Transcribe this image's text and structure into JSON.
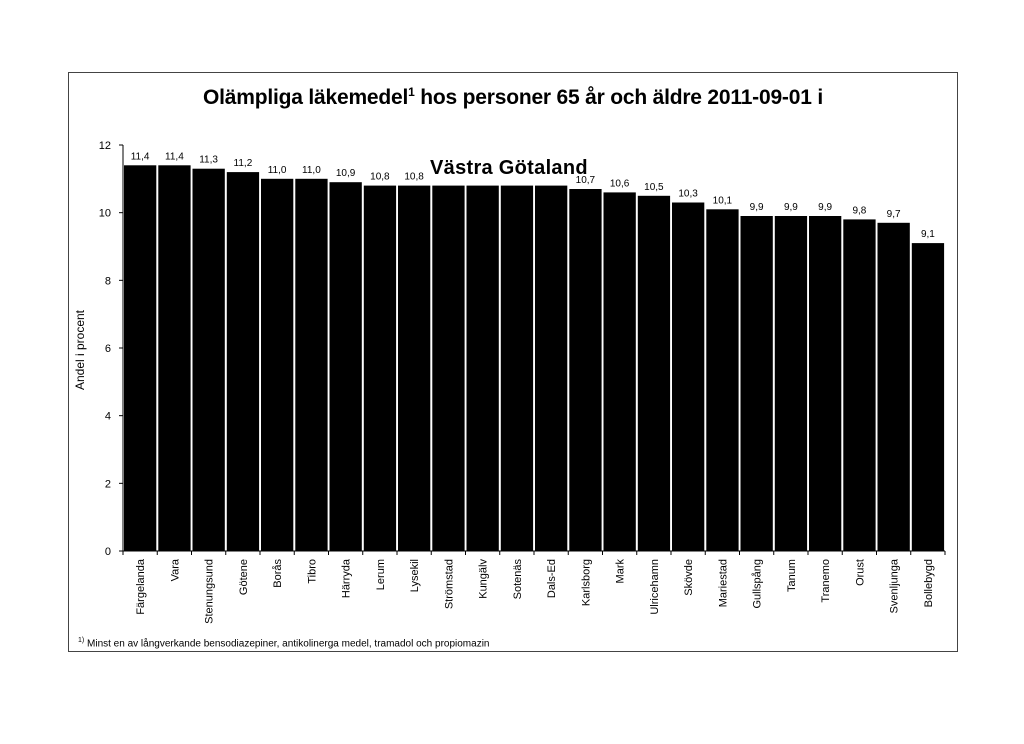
{
  "chart_data": {
    "type": "bar",
    "title": "Olämpliga läkemedel",
    "title_sup": "1",
    "title_rest": " hos personer 65 år och äldre 2011-09-01 i",
    "subtitle": "Västra Götaland",
    "ylabel": "Andel i procent",
    "xlabel": "",
    "ylim": [
      0,
      12
    ],
    "yticks": [
      0,
      2,
      4,
      6,
      8,
      10,
      12
    ],
    "categories": [
      "Färgelanda",
      "Vara",
      "Stenungsund",
      "Götene",
      "Borås",
      "Tibro",
      "Härryda",
      "Lerum",
      "Lysekil",
      "Strömstad",
      "Kungälv",
      "Sotenäs",
      "Dals-Ed",
      "Karlsborg",
      "Mark",
      "Ulricehamn",
      "Skövde",
      "Mariestad",
      "Gullspång",
      "Tanum",
      "Tranemo",
      "Orust",
      "Svenljunga",
      "Bollebygd"
    ],
    "values": [
      11.4,
      11.4,
      11.3,
      11.2,
      11.0,
      11.0,
      10.9,
      10.8,
      10.8,
      10.8,
      10.8,
      10.8,
      10.8,
      10.7,
      10.6,
      10.5,
      10.3,
      10.1,
      9.9,
      9.9,
      9.9,
      9.8,
      9.7,
      9.1
    ],
    "value_labels": [
      "11,4",
      "11,4",
      "11,3",
      "11,2",
      "11,0",
      "11,0",
      "10,9",
      "10,8",
      "10,8",
      "",
      "",
      "",
      "",
      "10,7",
      "10,6",
      "10,5",
      "10,3",
      "10,1",
      "9,9",
      "9,9",
      "9,9",
      "9,8",
      "9,7",
      "9,1"
    ],
    "bar_color": "#000000",
    "grid": false,
    "legend": "none"
  },
  "footnote": {
    "marker": "1)",
    "text": " Minst en av långverkande bensodiazepiner, antikolinerga medel, tramadol och propiomazin"
  }
}
